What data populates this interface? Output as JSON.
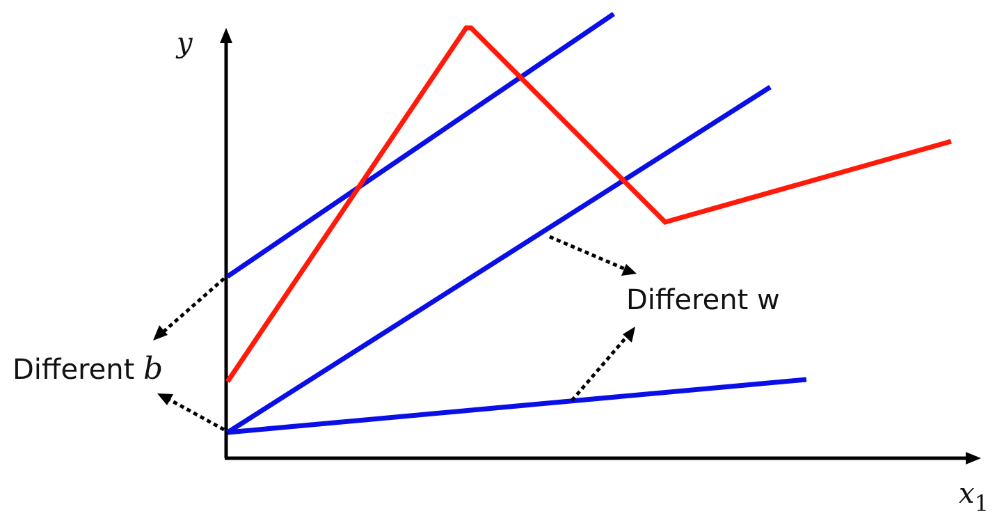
{
  "axes": {
    "y_label": "y",
    "x_label_main": "x",
    "x_label_subscript": "1"
  },
  "annotations": {
    "different_b_prefix": "Different ",
    "different_b_var": "b",
    "different_w": "Different w"
  },
  "colors": {
    "linear_models": "#0a0fe6",
    "piecewise_model": "#ff1a0a",
    "axes": "#000000"
  },
  "lines": {
    "blue": [
      {
        "description": "steep-offset",
        "role": "linear model, high intercept"
      },
      {
        "description": "steep-origin",
        "role": "linear model, steep slope"
      },
      {
        "description": "shallow-origin",
        "role": "linear model, shallow slope"
      }
    ],
    "red": {
      "role": "piecewise linear curve"
    }
  }
}
